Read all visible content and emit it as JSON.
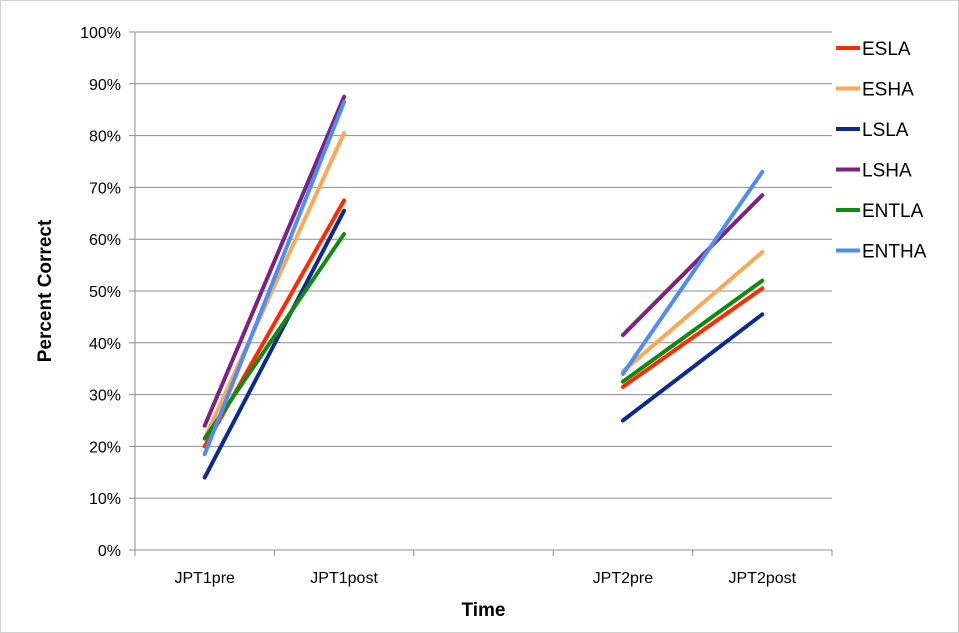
{
  "chart_data": {
    "type": "line",
    "title": "",
    "xlabel": "Time",
    "ylabel": "Percent Correct",
    "categories": [
      "JPT1pre",
      "JPT1post",
      "",
      "JPT2pre",
      "JPT2post"
    ],
    "ylim": [
      0,
      100
    ],
    "y_ticks": [
      "0%",
      "10%",
      "20%",
      "30%",
      "40%",
      "50%",
      "60%",
      "70%",
      "80%",
      "90%",
      "100%"
    ],
    "grid": "horizontal",
    "legend_position": "right",
    "series": [
      {
        "name": "ESLA",
        "color": "#ff2a00",
        "values": [
          20,
          67.5,
          null,
          31.5,
          50.5
        ]
      },
      {
        "name": "ESHA",
        "color": "#f9a857",
        "values": [
          21.5,
          80.5,
          null,
          34.5,
          57.5
        ]
      },
      {
        "name": "LSLA",
        "color": "#0d2a8f",
        "values": [
          14,
          65.5,
          null,
          25,
          45.5
        ]
      },
      {
        "name": "LSHA",
        "color": "#7b2283",
        "values": [
          24,
          87.5,
          null,
          41.5,
          68.5
        ]
      },
      {
        "name": "ENTLA",
        "color": "#128a12",
        "values": [
          21.5,
          61,
          null,
          32.5,
          52
        ]
      },
      {
        "name": "ENTHA",
        "color": "#4e8ef2",
        "values": [
          18.5,
          86.5,
          null,
          34,
          73
        ]
      }
    ]
  }
}
